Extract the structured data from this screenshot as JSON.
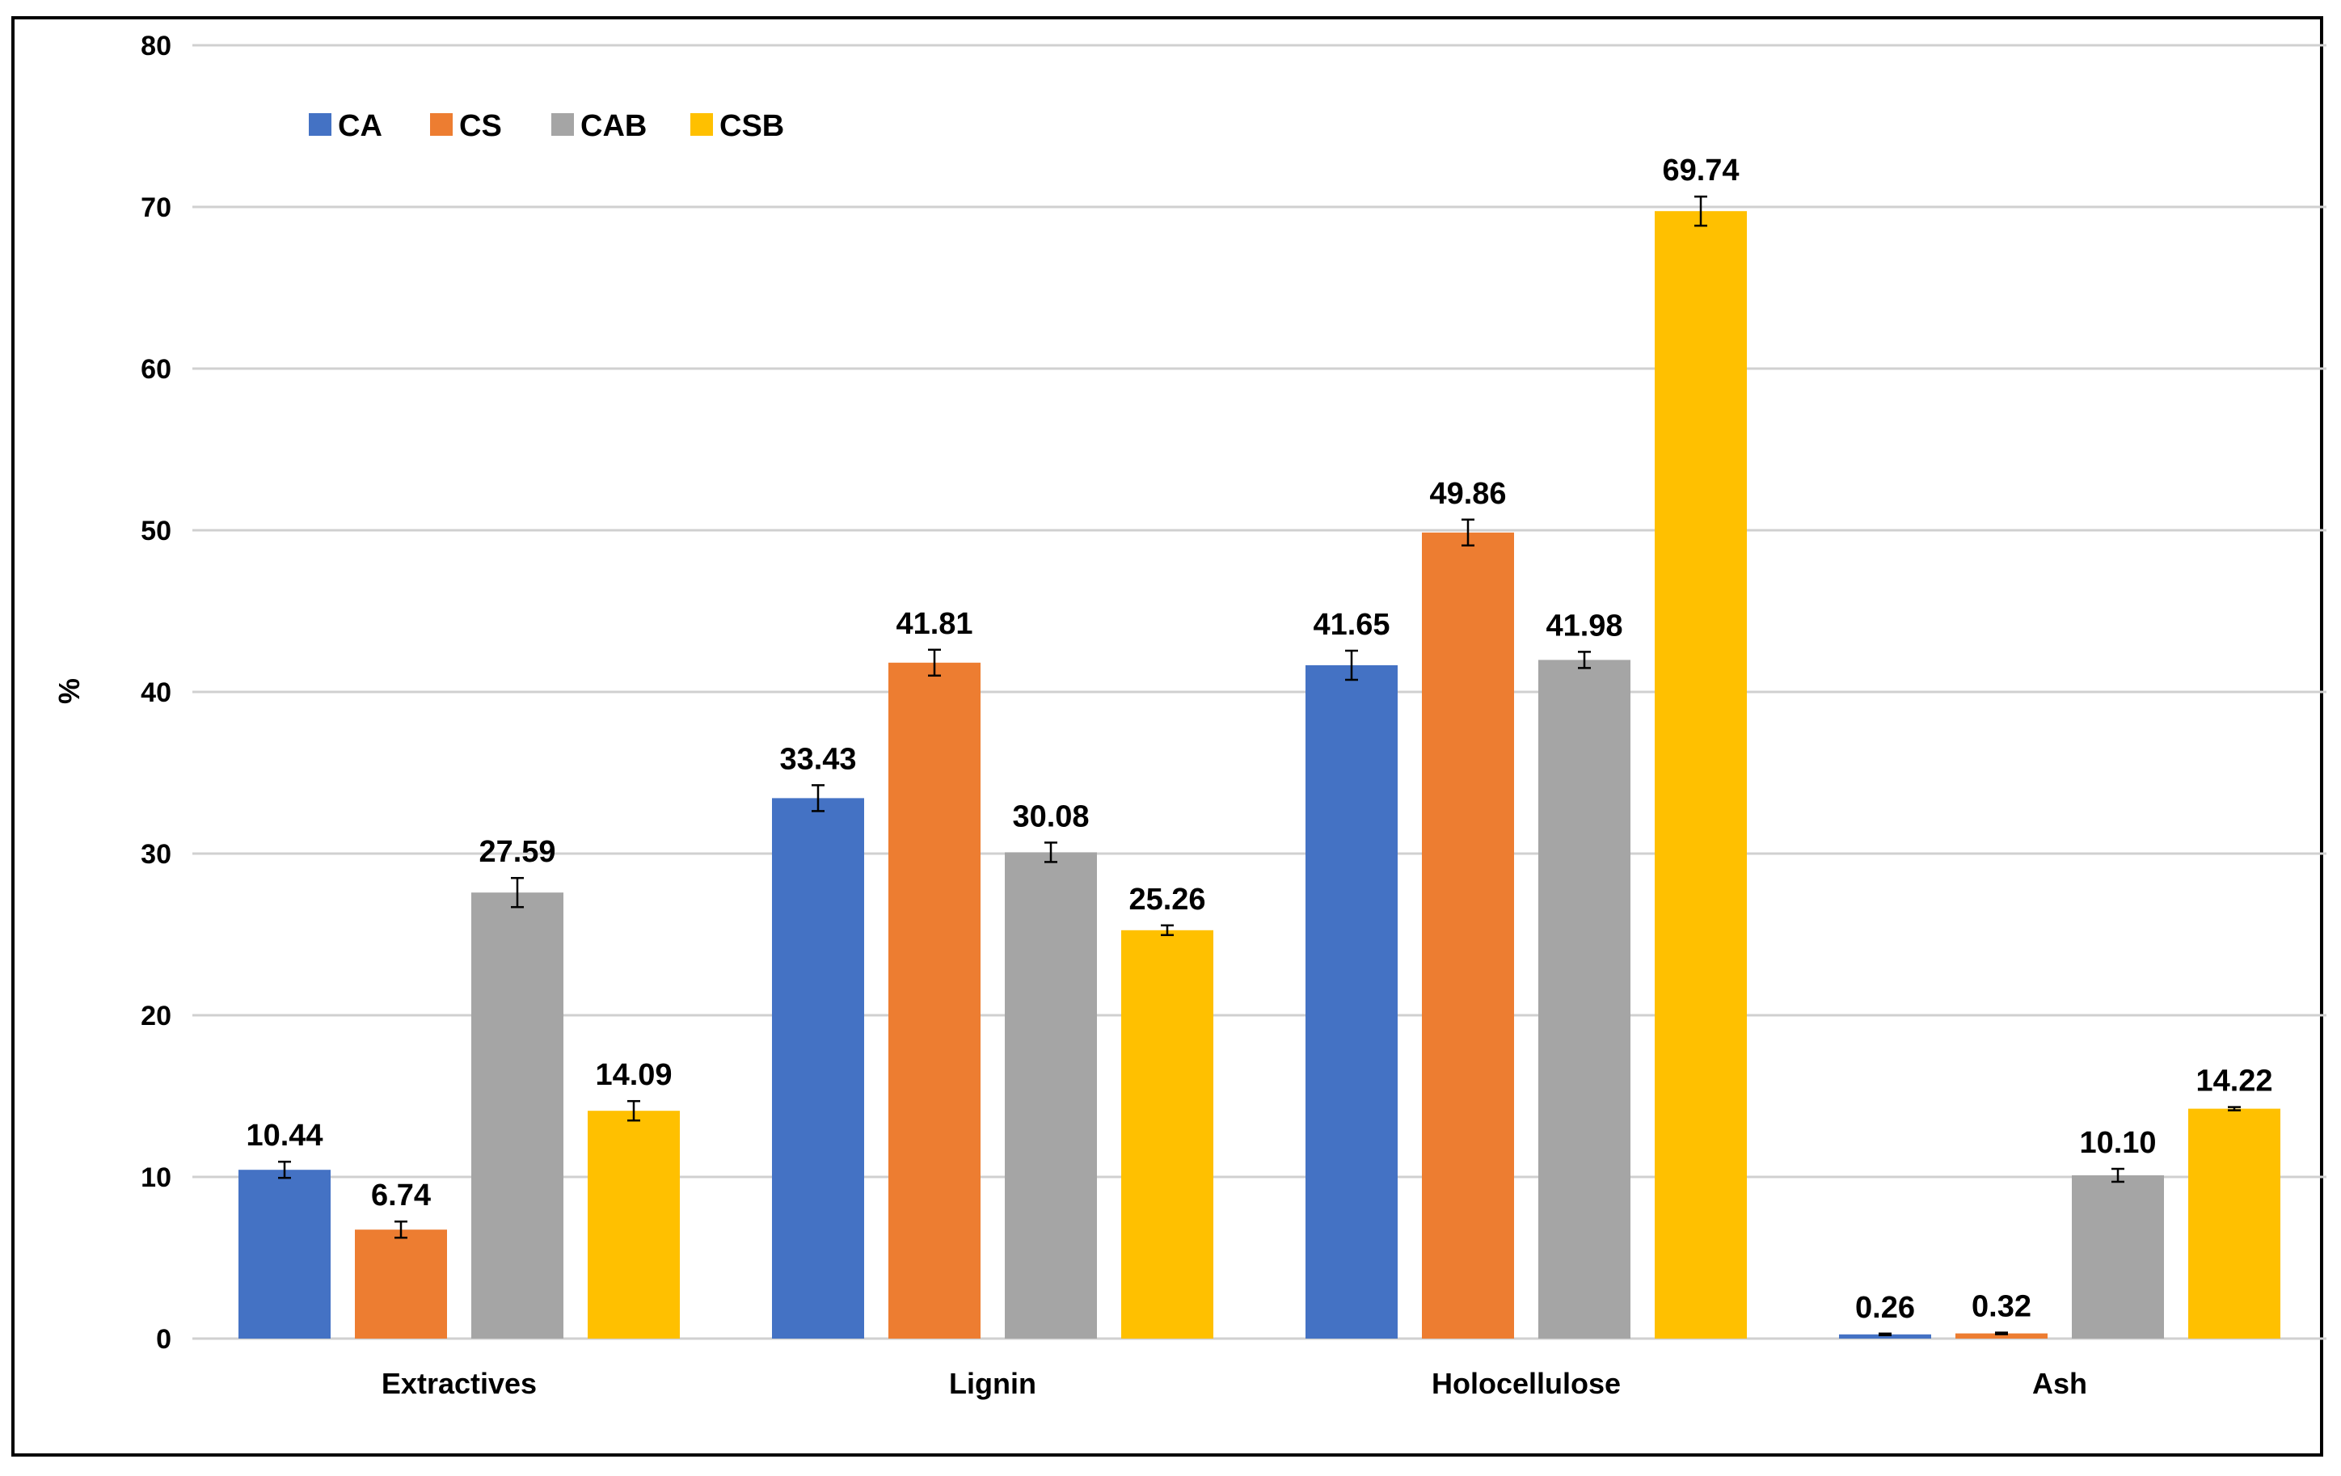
{
  "chart_data": {
    "type": "bar",
    "title": "",
    "xlabel": "",
    "ylabel": "%",
    "ylim": [
      0,
      80
    ],
    "yticks": [
      0,
      10,
      20,
      30,
      40,
      50,
      60,
      70,
      80
    ],
    "grid": true,
    "legend_position": "top-left",
    "categories": [
      "Extractives",
      "Lignin",
      "Holocellulose",
      "Ash"
    ],
    "series": [
      {
        "name": "CA",
        "color": "#4472C4",
        "values": [
          10.44,
          33.43,
          41.65,
          0.26
        ],
        "labels": [
          "10.44",
          "33.43",
          "41.65",
          "0.26"
        ],
        "errors": [
          0.5,
          0.8,
          0.9,
          0.05
        ]
      },
      {
        "name": "CS",
        "color": "#ED7D31",
        "values": [
          6.74,
          41.81,
          49.86,
          0.32
        ],
        "labels": [
          "6.74",
          "41.81",
          "49.86",
          "0.32"
        ],
        "errors": [
          0.5,
          0.8,
          0.8,
          0.05
        ]
      },
      {
        "name": "CAB",
        "color": "#A5A5A5",
        "values": [
          27.59,
          30.08,
          41.98,
          10.1
        ],
        "labels": [
          "27.59",
          "30.08",
          "41.98",
          "10.10"
        ],
        "errors": [
          0.9,
          0.6,
          0.5,
          0.4
        ]
      },
      {
        "name": "CSB",
        "color": "#FFC000",
        "values": [
          14.09,
          25.26,
          69.74,
          14.22
        ],
        "labels": [
          "14.09",
          "25.26",
          "69.74",
          "14.22"
        ],
        "errors": [
          0.6,
          0.3,
          0.9,
          0.1
        ]
      }
    ]
  }
}
